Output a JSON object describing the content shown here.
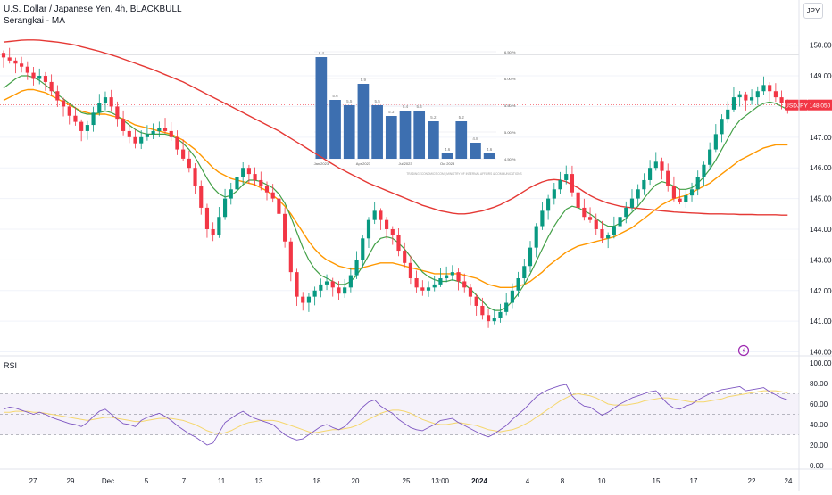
{
  "header": {
    "symbol_line": "U.S. Dollar / Japanese Yen, 4h, BLACKBULL",
    "indicator_line": "Serangkai - MA",
    "currency_button": "JPY"
  },
  "price_axis": {
    "labels": [
      "150.000",
      "149.000",
      "148.000",
      "147.000",
      "146.000",
      "145.000",
      "144.000",
      "143.000",
      "142.000",
      "141.000",
      "140.000"
    ],
    "current_symbol": "USDJPY",
    "current_price": "148.050",
    "current_value": 148.05
  },
  "rsi_panel": {
    "label": "RSI",
    "axis_labels": [
      "100.00",
      "80.00",
      "60.00",
      "40.00",
      "20.00",
      "0.00"
    ]
  },
  "time_axis": {
    "labels": [
      "27",
      "29",
      "Dec",
      "5",
      "7",
      "11",
      "13",
      "18",
      "20",
      "25",
      "13:00",
      "2024",
      "4",
      "8",
      "10",
      "15",
      "17",
      "22",
      "24"
    ]
  },
  "inset": {
    "y_labels": [
      "6.50 %",
      "6.00 %",
      "5.50 %",
      "5.00 %",
      "4.50 %"
    ],
    "x_labels": [
      "Jan 2023",
      "Apr 2023",
      "Jul 2023",
      "Oct 2023"
    ],
    "footnote": "TRADINGECONOMICS.COM | MINISTRY OF INTERNAL AFFAIRS & COMMUNICATIONS",
    "bar_values": [
      6.4,
      5.6,
      5.5,
      5.9,
      5.5,
      5.3,
      5.4,
      5.4,
      5.2,
      4.6,
      5.2,
      4.8,
      4.6
    ],
    "bar_labels": [
      "6.4",
      "5.6",
      "5.5",
      "5.9",
      "5.5",
      "5.3",
      "5.4",
      "5.4",
      "5.2",
      "4.6",
      "5.2",
      "4.8",
      "4.6"
    ]
  },
  "chart_data": [
    {
      "type": "candlestick",
      "title": "U.S. Dollar / Japanese Yen, 4h, BLACKBULL",
      "ylim": [
        139.9,
        150.6
      ],
      "colors": {
        "up": "#089981",
        "down": "#f23645",
        "ma_fast": "#43a047",
        "ma_mid": "#ff9800",
        "ma_slow": "#e53935"
      },
      "close": [
        149.6,
        149.5,
        149.4,
        149.3,
        149.1,
        148.9,
        149.0,
        148.8,
        148.5,
        148.2,
        148.0,
        147.7,
        147.5,
        147.2,
        147.4,
        147.8,
        148.1,
        148.3,
        148.0,
        147.6,
        147.2,
        147.0,
        146.8,
        147.0,
        147.1,
        147.2,
        147.3,
        147.2,
        147.0,
        146.6,
        146.3,
        146.0,
        145.4,
        144.7,
        144.0,
        143.8,
        144.4,
        145.0,
        145.3,
        145.7,
        146.0,
        145.8,
        145.6,
        145.4,
        145.2,
        145.0,
        144.5,
        143.6,
        142.6,
        141.8,
        141.6,
        141.8,
        142.0,
        142.2,
        142.3,
        142.1,
        141.9,
        142.1,
        142.5,
        143.0,
        143.7,
        144.3,
        144.6,
        144.3,
        144.0,
        143.8,
        143.3,
        142.9,
        142.4,
        142.1,
        142.0,
        142.1,
        142.2,
        142.4,
        142.5,
        142.6,
        142.3,
        142.1,
        141.8,
        141.5,
        141.2,
        141.0,
        141.1,
        141.3,
        141.6,
        142.0,
        142.4,
        142.8,
        143.4,
        144.1,
        144.6,
        145.0,
        145.3,
        145.6,
        145.8,
        145.2,
        144.7,
        144.4,
        144.3,
        144.0,
        143.7,
        143.8,
        144.1,
        144.4,
        144.7,
        145.0,
        145.3,
        145.6,
        146.0,
        146.2,
        145.9,
        145.4,
        145.0,
        144.9,
        145.1,
        145.3,
        145.7,
        146.1,
        146.6,
        147.1,
        147.6,
        147.9,
        148.3,
        148.4,
        148.2,
        148.3,
        148.5,
        148.7,
        148.5,
        148.3,
        148.1,
        148.05
      ],
      "ma_fast": [
        148.6,
        148.75,
        148.9,
        149.0,
        149.0,
        148.95,
        148.85,
        148.7,
        148.55,
        148.4,
        148.25,
        148.1,
        147.95,
        147.8,
        147.75,
        147.75,
        147.8,
        147.85,
        147.8,
        147.7,
        147.55,
        147.4,
        147.25,
        147.15,
        147.1,
        147.1,
        147.1,
        147.1,
        147.05,
        146.95,
        146.8,
        146.6,
        146.35,
        146.0,
        145.65,
        145.35,
        145.15,
        145.05,
        145.1,
        145.25,
        145.45,
        145.6,
        145.6,
        145.55,
        145.45,
        145.35,
        145.15,
        144.85,
        144.4,
        143.9,
        143.4,
        143.0,
        142.7,
        142.5,
        142.4,
        142.3,
        142.2,
        142.2,
        142.3,
        142.5,
        142.8,
        143.15,
        143.5,
        143.7,
        143.75,
        143.7,
        143.55,
        143.35,
        143.1,
        142.85,
        142.6,
        142.45,
        142.35,
        142.3,
        142.3,
        142.35,
        142.3,
        142.2,
        142.05,
        141.85,
        141.65,
        141.45,
        141.35,
        141.35,
        141.45,
        141.65,
        141.9,
        142.2,
        142.55,
        142.95,
        143.35,
        143.75,
        144.1,
        144.4,
        144.65,
        144.75,
        144.7,
        144.6,
        144.5,
        144.35,
        144.2,
        144.1,
        144.1,
        144.2,
        144.35,
        144.55,
        144.75,
        145.0,
        145.25,
        145.45,
        145.55,
        145.5,
        145.4,
        145.3,
        145.3,
        145.35,
        145.5,
        145.7,
        145.95,
        146.25,
        146.6,
        146.95,
        147.3,
        147.55,
        147.7,
        147.85,
        148.0,
        148.1,
        148.15,
        148.1,
        148.0,
        147.9
      ],
      "ma_mid": [
        148.2,
        148.3,
        148.4,
        148.5,
        148.55,
        148.55,
        148.5,
        148.45,
        148.35,
        148.25,
        148.15,
        148.05,
        147.95,
        147.85,
        147.8,
        147.75,
        147.75,
        147.75,
        147.7,
        147.65,
        147.6,
        147.5,
        147.4,
        147.35,
        147.3,
        147.25,
        147.2,
        147.15,
        147.1,
        147.0,
        146.9,
        146.75,
        146.6,
        146.4,
        146.2,
        146.0,
        145.85,
        145.75,
        145.65,
        145.6,
        145.55,
        145.5,
        145.45,
        145.35,
        145.25,
        145.1,
        144.95,
        144.75,
        144.5,
        144.2,
        143.9,
        143.6,
        143.35,
        143.15,
        143.0,
        142.9,
        142.8,
        142.75,
        142.7,
        142.7,
        142.75,
        142.8,
        142.85,
        142.9,
        142.9,
        142.9,
        142.85,
        142.8,
        142.75,
        142.7,
        142.65,
        142.6,
        142.55,
        142.55,
        142.55,
        142.55,
        142.55,
        142.5,
        142.45,
        142.4,
        142.3,
        142.2,
        142.15,
        142.1,
        142.1,
        142.1,
        142.15,
        142.2,
        142.3,
        142.45,
        142.6,
        142.8,
        142.95,
        143.1,
        143.25,
        143.35,
        143.45,
        143.5,
        143.55,
        143.6,
        143.65,
        143.7,
        143.75,
        143.85,
        143.95,
        144.05,
        144.2,
        144.35,
        144.5,
        144.65,
        144.8,
        144.9,
        145.0,
        145.05,
        145.1,
        145.2,
        145.3,
        145.4,
        145.5,
        145.65,
        145.8,
        145.95,
        146.1,
        146.25,
        146.35,
        146.45,
        146.55,
        146.65,
        146.7,
        146.75,
        146.75,
        146.75
      ],
      "ma_slow": [
        150.1,
        150.12,
        150.14,
        150.16,
        150.17,
        150.17,
        150.16,
        150.14,
        150.12,
        150.1,
        150.07,
        150.04,
        150.0,
        149.95,
        149.9,
        149.85,
        149.8,
        149.74,
        149.68,
        149.62,
        149.55,
        149.48,
        149.41,
        149.34,
        149.27,
        149.2,
        149.12,
        149.04,
        148.96,
        148.88,
        148.8,
        148.7,
        148.6,
        148.5,
        148.4,
        148.3,
        148.2,
        148.1,
        148.0,
        147.9,
        147.8,
        147.7,
        147.6,
        147.5,
        147.4,
        147.3,
        147.2,
        147.08,
        146.96,
        146.84,
        146.72,
        146.6,
        146.48,
        146.36,
        146.24,
        146.12,
        146.0,
        145.9,
        145.8,
        145.7,
        145.6,
        145.5,
        145.42,
        145.34,
        145.26,
        145.18,
        145.1,
        145.02,
        144.94,
        144.86,
        144.78,
        144.72,
        144.66,
        144.6,
        144.56,
        144.52,
        144.5,
        144.5,
        144.52,
        144.56,
        144.6,
        144.66,
        144.72,
        144.8,
        144.9,
        145.0,
        145.12,
        145.24,
        145.36,
        145.46,
        145.54,
        145.6,
        145.62,
        145.6,
        145.55,
        145.45,
        145.35,
        145.22,
        145.1,
        145.0,
        144.92,
        144.85,
        144.8,
        144.75,
        144.72,
        144.7,
        144.68,
        144.66,
        144.64,
        144.62,
        144.6,
        144.58,
        144.56,
        144.55,
        144.54,
        144.53,
        144.52,
        144.51,
        144.5,
        144.5,
        144.5,
        144.49,
        144.49,
        144.48,
        144.48,
        144.48,
        144.47,
        144.47,
        144.47,
        144.47,
        144.46,
        144.46
      ]
    },
    {
      "type": "line",
      "title": "RSI",
      "ylim": [
        0,
        100
      ],
      "bands": [
        30,
        70
      ],
      "midline": 50,
      "rsi": [
        55,
        57,
        56,
        54,
        52,
        50,
        52,
        50,
        47,
        45,
        43,
        41,
        40,
        38,
        42,
        48,
        53,
        55,
        50,
        45,
        41,
        40,
        38,
        44,
        47,
        49,
        51,
        48,
        44,
        39,
        35,
        31,
        28,
        24,
        20,
        22,
        32,
        42,
        46,
        50,
        53,
        49,
        46,
        44,
        42,
        40,
        35,
        30,
        27,
        25,
        26,
        30,
        34,
        38,
        40,
        37,
        35,
        38,
        44,
        50,
        57,
        62,
        64,
        58,
        54,
        51,
        45,
        41,
        37,
        35,
        34,
        37,
        40,
        44,
        45,
        46,
        42,
        39,
        36,
        33,
        30,
        28,
        31,
        35,
        39,
        45,
        50,
        55,
        61,
        67,
        71,
        74,
        76,
        78,
        79,
        68,
        62,
        58,
        57,
        53,
        49,
        52,
        56,
        60,
        63,
        66,
        68,
        70,
        72,
        73,
        66,
        60,
        56,
        55,
        58,
        60,
        64,
        67,
        70,
        72,
        74,
        75,
        76,
        77,
        73,
        74,
        75,
        76,
        72,
        69,
        66,
        64
      ],
      "rsi_ma": [
        52,
        52,
        53,
        53,
        53,
        52,
        52,
        51,
        50,
        49,
        48,
        47,
        46,
        45,
        44,
        45,
        46,
        47,
        47,
        46,
        45,
        44,
        43,
        43,
        44,
        45,
        46,
        46,
        46,
        45,
        44,
        42,
        40,
        37,
        34,
        32,
        31,
        32,
        34,
        37,
        40,
        42,
        43,
        44,
        44,
        44,
        43,
        41,
        39,
        37,
        35,
        33,
        32,
        33,
        34,
        35,
        35,
        36,
        37,
        39,
        42,
        45,
        48,
        51,
        53,
        54,
        54,
        53,
        51,
        48,
        45,
        43,
        41,
        40,
        40,
        41,
        42,
        41,
        40,
        39,
        37,
        35,
        34,
        33,
        34,
        35,
        37,
        40,
        43,
        47,
        51,
        55,
        59,
        63,
        66,
        69,
        70,
        69,
        68,
        66,
        63,
        60,
        59,
        59,
        59,
        60,
        61,
        63,
        64,
        65,
        66,
        66,
        65,
        64,
        63,
        62,
        62,
        62,
        63,
        64,
        65,
        67,
        68,
        69,
        70,
        71,
        72,
        73,
        73,
        73,
        72,
        71
      ]
    },
    {
      "type": "bar",
      "title": "",
      "categories": [
        "Jan 2023",
        "",
        "",
        "Apr 2023",
        "",
        "",
        "Jul 2023",
        "",
        "",
        "Oct 2023",
        "",
        "",
        ""
      ],
      "values": [
        6.4,
        5.6,
        5.5,
        5.9,
        5.5,
        5.3,
        5.4,
        5.4,
        5.2,
        4.6,
        5.2,
        4.8,
        4.6
      ],
      "ylim": [
        4.5,
        6.5
      ],
      "color": "#3d6fb0"
    }
  ]
}
